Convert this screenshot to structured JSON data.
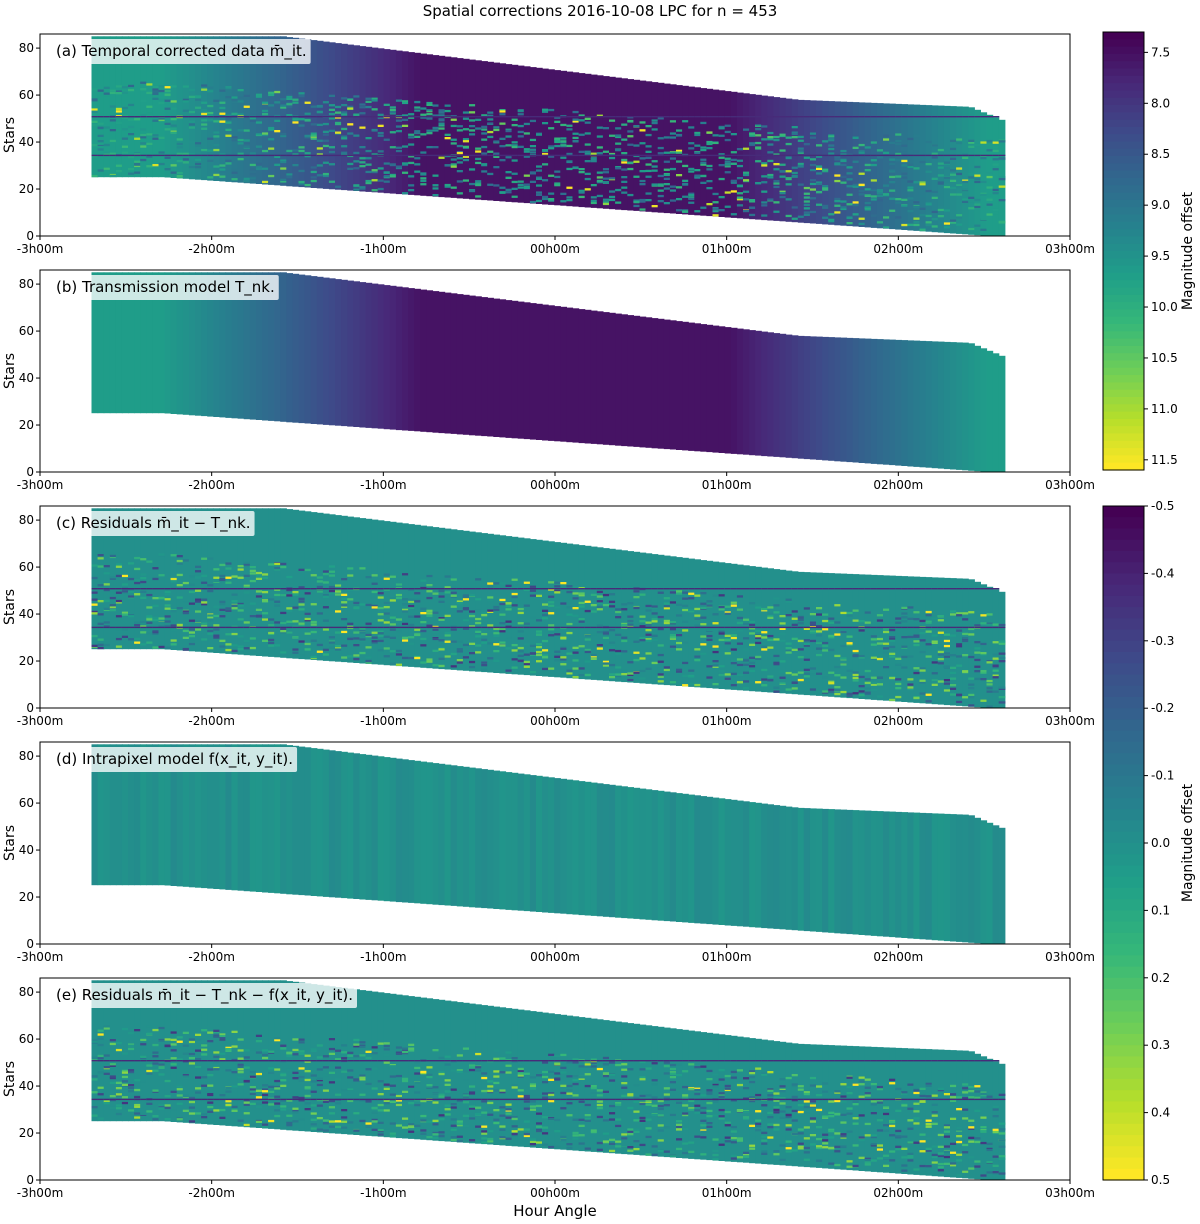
{
  "figure": {
    "title": "Spatial corrections 2016-10-08 LPC for n = 453",
    "xlabel": "Hour Angle"
  },
  "chart_data": [
    {
      "type": "heatmap",
      "panel_label": "(a) Temporal corrected data m̄_it.",
      "ylabel": "Stars",
      "xticks": [
        "-3h00m",
        "-2h00m",
        "-1h00m",
        "00h00m",
        "01h00m",
        "02h00m",
        "03h00m"
      ],
      "yticks": [
        0,
        20,
        40,
        60,
        80
      ],
      "xlim_hours": [
        -3,
        3
      ],
      "ylim": [
        0,
        86
      ],
      "colormap": "viridis_r",
      "colorbar": {
        "label": "Magnitude offset",
        "ticks": [
          7.5,
          8.0,
          8.5,
          9.0,
          9.5,
          10.0,
          10.5,
          11.0,
          11.5
        ],
        "range": [
          7.3,
          11.6
        ]
      }
    },
    {
      "type": "heatmap",
      "panel_label": "(b) Transmission model T_nk.",
      "ylabel": "Stars",
      "xticks": [
        "-3h00m",
        "-2h00m",
        "-1h00m",
        "00h00m",
        "01h00m",
        "02h00m",
        "03h00m"
      ],
      "yticks": [
        0,
        20,
        40,
        60,
        80
      ],
      "xlim_hours": [
        -3,
        3
      ],
      "ylim": [
        0,
        86
      ],
      "colormap": "viridis_r"
    },
    {
      "type": "heatmap",
      "panel_label": "(c) Residuals m̄_it − T_nk.",
      "ylabel": "Stars",
      "xticks": [
        "-3h00m",
        "-2h00m",
        "-1h00m",
        "00h00m",
        "01h00m",
        "02h00m",
        "03h00m"
      ],
      "yticks": [
        0,
        20,
        40,
        60,
        80
      ],
      "xlim_hours": [
        -3,
        3
      ],
      "ylim": [
        0,
        86
      ],
      "colormap": "viridis_r",
      "colorbar": {
        "label": "Magnitude offset",
        "ticks": [
          -0.5,
          -0.4,
          -0.3,
          -0.2,
          -0.1,
          0.0,
          0.1,
          0.2,
          0.3,
          0.4,
          0.5
        ],
        "range": [
          -0.5,
          0.5
        ]
      }
    },
    {
      "type": "heatmap",
      "panel_label": "(d) Intrapixel model f(x_it, y_it).",
      "ylabel": "Stars",
      "xticks": [
        "-3h00m",
        "-2h00m",
        "-1h00m",
        "00h00m",
        "01h00m",
        "02h00m",
        "03h00m"
      ],
      "yticks": [
        0,
        20,
        40,
        60,
        80
      ],
      "xlim_hours": [
        -3,
        3
      ],
      "ylim": [
        0,
        86
      ],
      "colormap": "viridis_r"
    },
    {
      "type": "heatmap",
      "panel_label": "(e) Residuals m̄_it − T_nk − f(x_it, y_it).",
      "ylabel": "Stars",
      "xticks": [
        "-3h00m",
        "-2h00m",
        "-1h00m",
        "00h00m",
        "01h00m",
        "02h00m",
        "03h00m"
      ],
      "yticks": [
        0,
        20,
        40,
        60,
        80
      ],
      "xlim_hours": [
        -3,
        3
      ],
      "ylim": [
        0,
        86
      ],
      "colormap": "viridis_r"
    }
  ],
  "colors": {
    "viridis_dark": "#440154",
    "viridis_mid": "#21918c",
    "viridis_light": "#fde725"
  }
}
